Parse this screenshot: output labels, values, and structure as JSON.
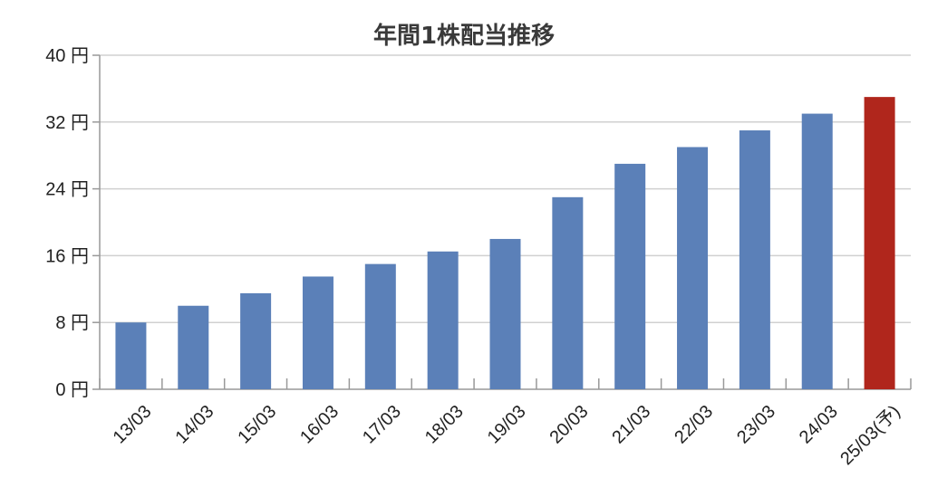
{
  "chart_data": {
    "type": "bar",
    "title": "年間1株配当推移",
    "xlabel": "",
    "ylabel": "",
    "y_unit": "円",
    "ylim": [
      0,
      40
    ],
    "yticks": [
      0,
      8,
      16,
      24,
      32,
      40
    ],
    "ytick_labels": [
      "0 円",
      "8 円",
      "16 円",
      "24 円",
      "32 円",
      "40 円"
    ],
    "grid": true,
    "legend": "none",
    "categories": [
      "13/03",
      "14/03",
      "15/03",
      "16/03",
      "17/03",
      "18/03",
      "19/03",
      "20/03",
      "21/03",
      "22/03",
      "23/03",
      "24/03",
      "25/03(予)"
    ],
    "values": [
      8,
      10,
      11.5,
      13.5,
      15,
      16.5,
      18,
      23,
      27,
      29,
      31,
      33,
      35
    ],
    "bar_colors": [
      "#5b80b8",
      "#5b80b8",
      "#5b80b8",
      "#5b80b8",
      "#5b80b8",
      "#5b80b8",
      "#5b80b8",
      "#5b80b8",
      "#5b80b8",
      "#5b80b8",
      "#5b80b8",
      "#5b80b8",
      "#b0261c"
    ]
  }
}
